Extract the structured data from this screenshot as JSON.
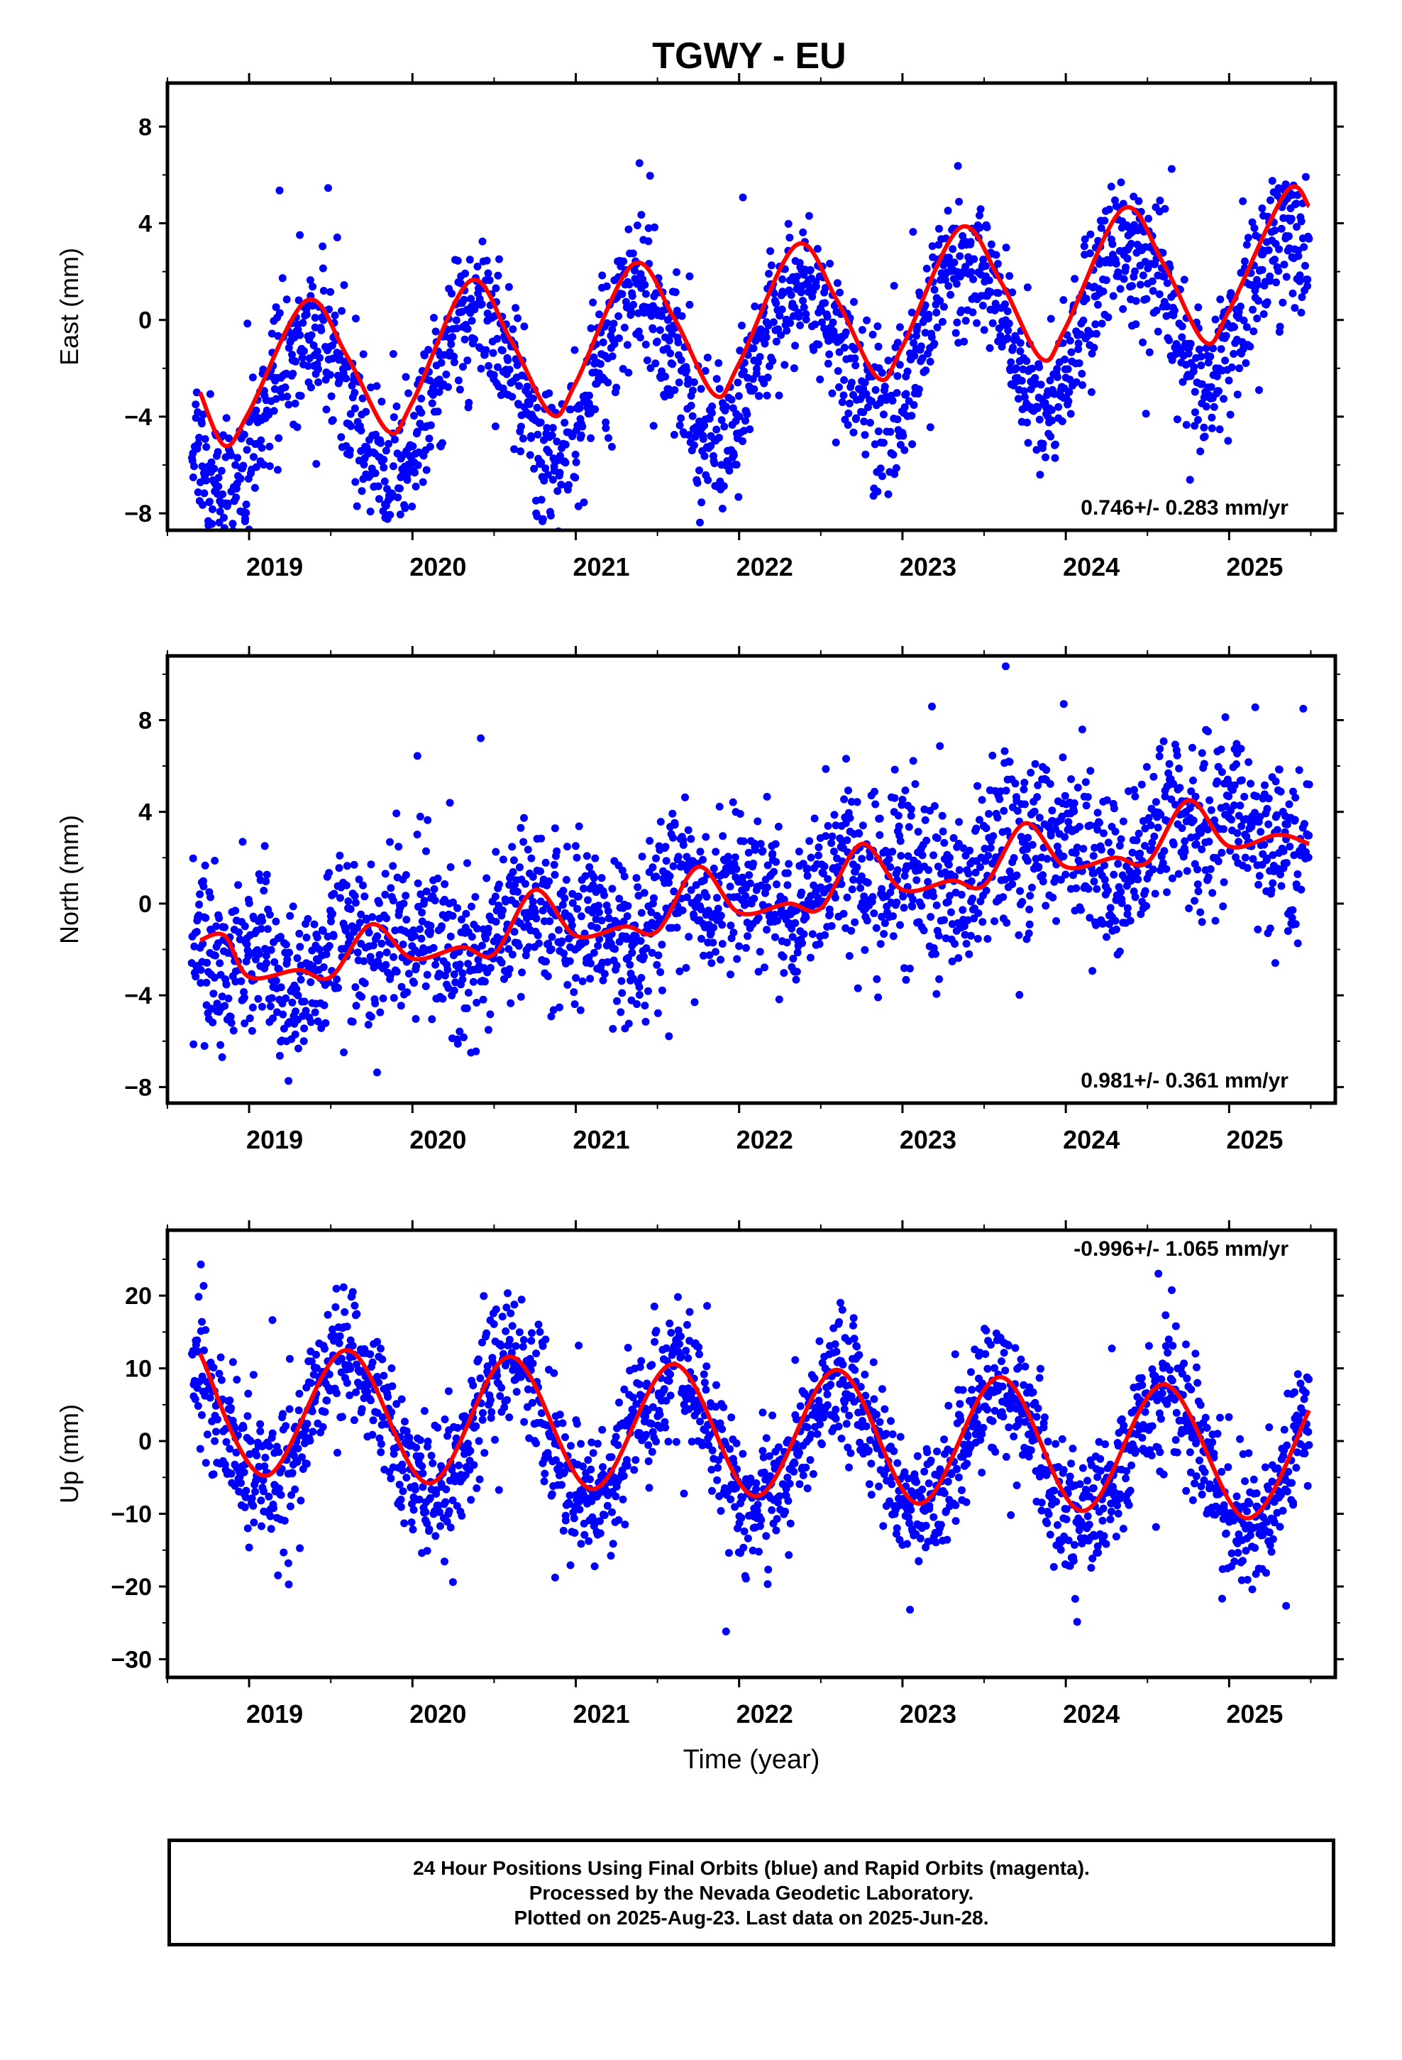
{
  "title": "TGWY - EU",
  "colors": {
    "points": "#0000ff",
    "fit": "#ff0000",
    "frame": "#000000"
  },
  "chart_data": [
    {
      "type": "scatter",
      "ylabel": "East (mm)",
      "xlabel": "",
      "xlim": [
        2018.5,
        2025.65
      ],
      "ylim": [
        -8.7,
        9.8
      ],
      "yticks": [
        -8,
        -4,
        0,
        4,
        8
      ],
      "xticks": [
        2019,
        2020,
        2021,
        2022,
        2023,
        2024,
        2025
      ],
      "xtick_labels": [
        "2019",
        "2020",
        "2021",
        "2022",
        "2023",
        "2024",
        "2025"
      ],
      "rate_label": "0.746+/- 0.283 mm/yr",
      "rate_position": "bottom-right",
      "x_range": [
        2018.65,
        2025.49
      ],
      "model": {
        "offset": -4.1,
        "trend_mm_per_yr": 0.746,
        "annual_amp": 3.1,
        "annual_phase_peak": 0.37,
        "semiannual_amp": 0.3,
        "noise_sd": 1.5,
        "n_points": 2200,
        "seed": 11
      },
      "fit_samples": [
        [
          2018.7,
          -3.0
        ],
        [
          2018.85,
          -5.2
        ],
        [
          2019.0,
          -3.8
        ],
        [
          2019.35,
          0.8
        ],
        [
          2019.6,
          -1.5
        ],
        [
          2019.85,
          -4.6
        ],
        [
          2020.0,
          -3.4
        ],
        [
          2020.35,
          1.6
        ],
        [
          2020.6,
          -0.8
        ],
        [
          2020.85,
          -3.9
        ],
        [
          2021.0,
          -2.6
        ],
        [
          2021.35,
          2.3
        ],
        [
          2021.6,
          0.1
        ],
        [
          2021.85,
          -3.1
        ],
        [
          2022.0,
          -1.8
        ],
        [
          2022.35,
          3.1
        ],
        [
          2022.6,
          0.8
        ],
        [
          2022.85,
          -2.4
        ],
        [
          2023.0,
          -1.1
        ],
        [
          2023.35,
          3.8
        ],
        [
          2023.6,
          1.6
        ],
        [
          2023.85,
          -1.6
        ],
        [
          2024.0,
          -0.3
        ],
        [
          2024.35,
          4.6
        ],
        [
          2024.6,
          2.3
        ],
        [
          2024.85,
          -0.9
        ],
        [
          2025.0,
          0.4
        ],
        [
          2025.35,
          5.3
        ],
        [
          2025.49,
          4.7
        ]
      ]
    },
    {
      "type": "scatter",
      "ylabel": "North (mm)",
      "xlabel": "",
      "xlim": [
        2018.5,
        2025.65
      ],
      "ylim": [
        -8.7,
        10.8
      ],
      "yticks": [
        -8,
        -4,
        0,
        4,
        8
      ],
      "xticks": [
        2019,
        2020,
        2021,
        2022,
        2023,
        2024,
        2025
      ],
      "xtick_labels": [
        "2019",
        "2020",
        "2021",
        "2022",
        "2023",
        "2024",
        "2025"
      ],
      "rate_label": "0.981+/- 0.361 mm/yr",
      "rate_position": "bottom-right",
      "x_range": [
        2018.65,
        2025.49
      ],
      "model": {
        "offset": -3.1,
        "trend_mm_per_yr": 0.981,
        "annual_amp": 0.9,
        "annual_phase_peak": 0.78,
        "semiannual_amp": 0.6,
        "noise_sd": 1.8,
        "n_points": 2200,
        "seed": 23
      },
      "fit_samples": [
        [
          2018.7,
          -1.6
        ],
        [
          2018.85,
          -1.4
        ],
        [
          2019.0,
          -3.2
        ],
        [
          2019.3,
          -2.9
        ],
        [
          2019.5,
          -3.2
        ],
        [
          2019.75,
          -0.9
        ],
        [
          2020.0,
          -2.4
        ],
        [
          2020.3,
          -1.9
        ],
        [
          2020.5,
          -2.2
        ],
        [
          2020.75,
          0.6
        ],
        [
          2021.0,
          -1.4
        ],
        [
          2021.3,
          -1.0
        ],
        [
          2021.5,
          -1.2
        ],
        [
          2021.75,
          1.6
        ],
        [
          2022.0,
          -0.4
        ],
        [
          2022.3,
          0.0
        ],
        [
          2022.5,
          -0.2
        ],
        [
          2022.75,
          2.6
        ],
        [
          2023.0,
          0.6
        ],
        [
          2023.3,
          1.0
        ],
        [
          2023.5,
          0.8
        ],
        [
          2023.75,
          3.5
        ],
        [
          2024.0,
          1.6
        ],
        [
          2024.3,
          2.0
        ],
        [
          2024.5,
          1.8
        ],
        [
          2024.75,
          4.5
        ],
        [
          2025.0,
          2.5
        ],
        [
          2025.3,
          3.0
        ],
        [
          2025.49,
          2.6
        ]
      ]
    },
    {
      "type": "scatter",
      "ylabel": "Up (mm)",
      "xlabel": "Time (year)",
      "xlim": [
        2018.5,
        2025.65
      ],
      "ylim": [
        -32.5,
        29.0
      ],
      "yticks": [
        -30,
        -20,
        -10,
        0,
        10,
        20
      ],
      "xticks": [
        2019,
        2020,
        2021,
        2022,
        2023,
        2024,
        2025
      ],
      "xtick_labels": [
        "2019",
        "2020",
        "2021",
        "2022",
        "2023",
        "2024",
        "2025"
      ],
      "rate_label": "-0.996+/- 1.065 mm/yr",
      "rate_position": "top-right",
      "x_range": [
        2018.65,
        2025.49
      ],
      "model": {
        "offset": 3.5,
        "trend_mm_per_yr": -0.996,
        "annual_amp": 9.3,
        "annual_phase_peak": 0.6,
        "semiannual_amp": 0.6,
        "noise_sd": 4.6,
        "n_points": 2200,
        "seed": 37
      },
      "fit_samples": [
        [
          2018.7,
          12.0
        ],
        [
          2019.1,
          -4.8
        ],
        [
          2019.6,
          12.5
        ],
        [
          2020.1,
          -5.8
        ],
        [
          2020.6,
          11.6
        ],
        [
          2021.1,
          -6.6
        ],
        [
          2021.6,
          10.6
        ],
        [
          2022.1,
          -7.6
        ],
        [
          2022.6,
          9.8
        ],
        [
          2023.1,
          -8.6
        ],
        [
          2023.6,
          8.8
        ],
        [
          2024.1,
          -9.6
        ],
        [
          2024.6,
          7.8
        ],
        [
          2025.1,
          -10.6
        ],
        [
          2025.49,
          4.2
        ]
      ]
    }
  ],
  "footer": {
    "line1": "24 Hour Positions Using Final Orbits (blue) and Rapid Orbits (magenta).",
    "line2": "Processed by the Nevada Geodetic Laboratory.",
    "line3": "Plotted on 2025-Aug-23. Last data on 2025-Jun-28."
  }
}
